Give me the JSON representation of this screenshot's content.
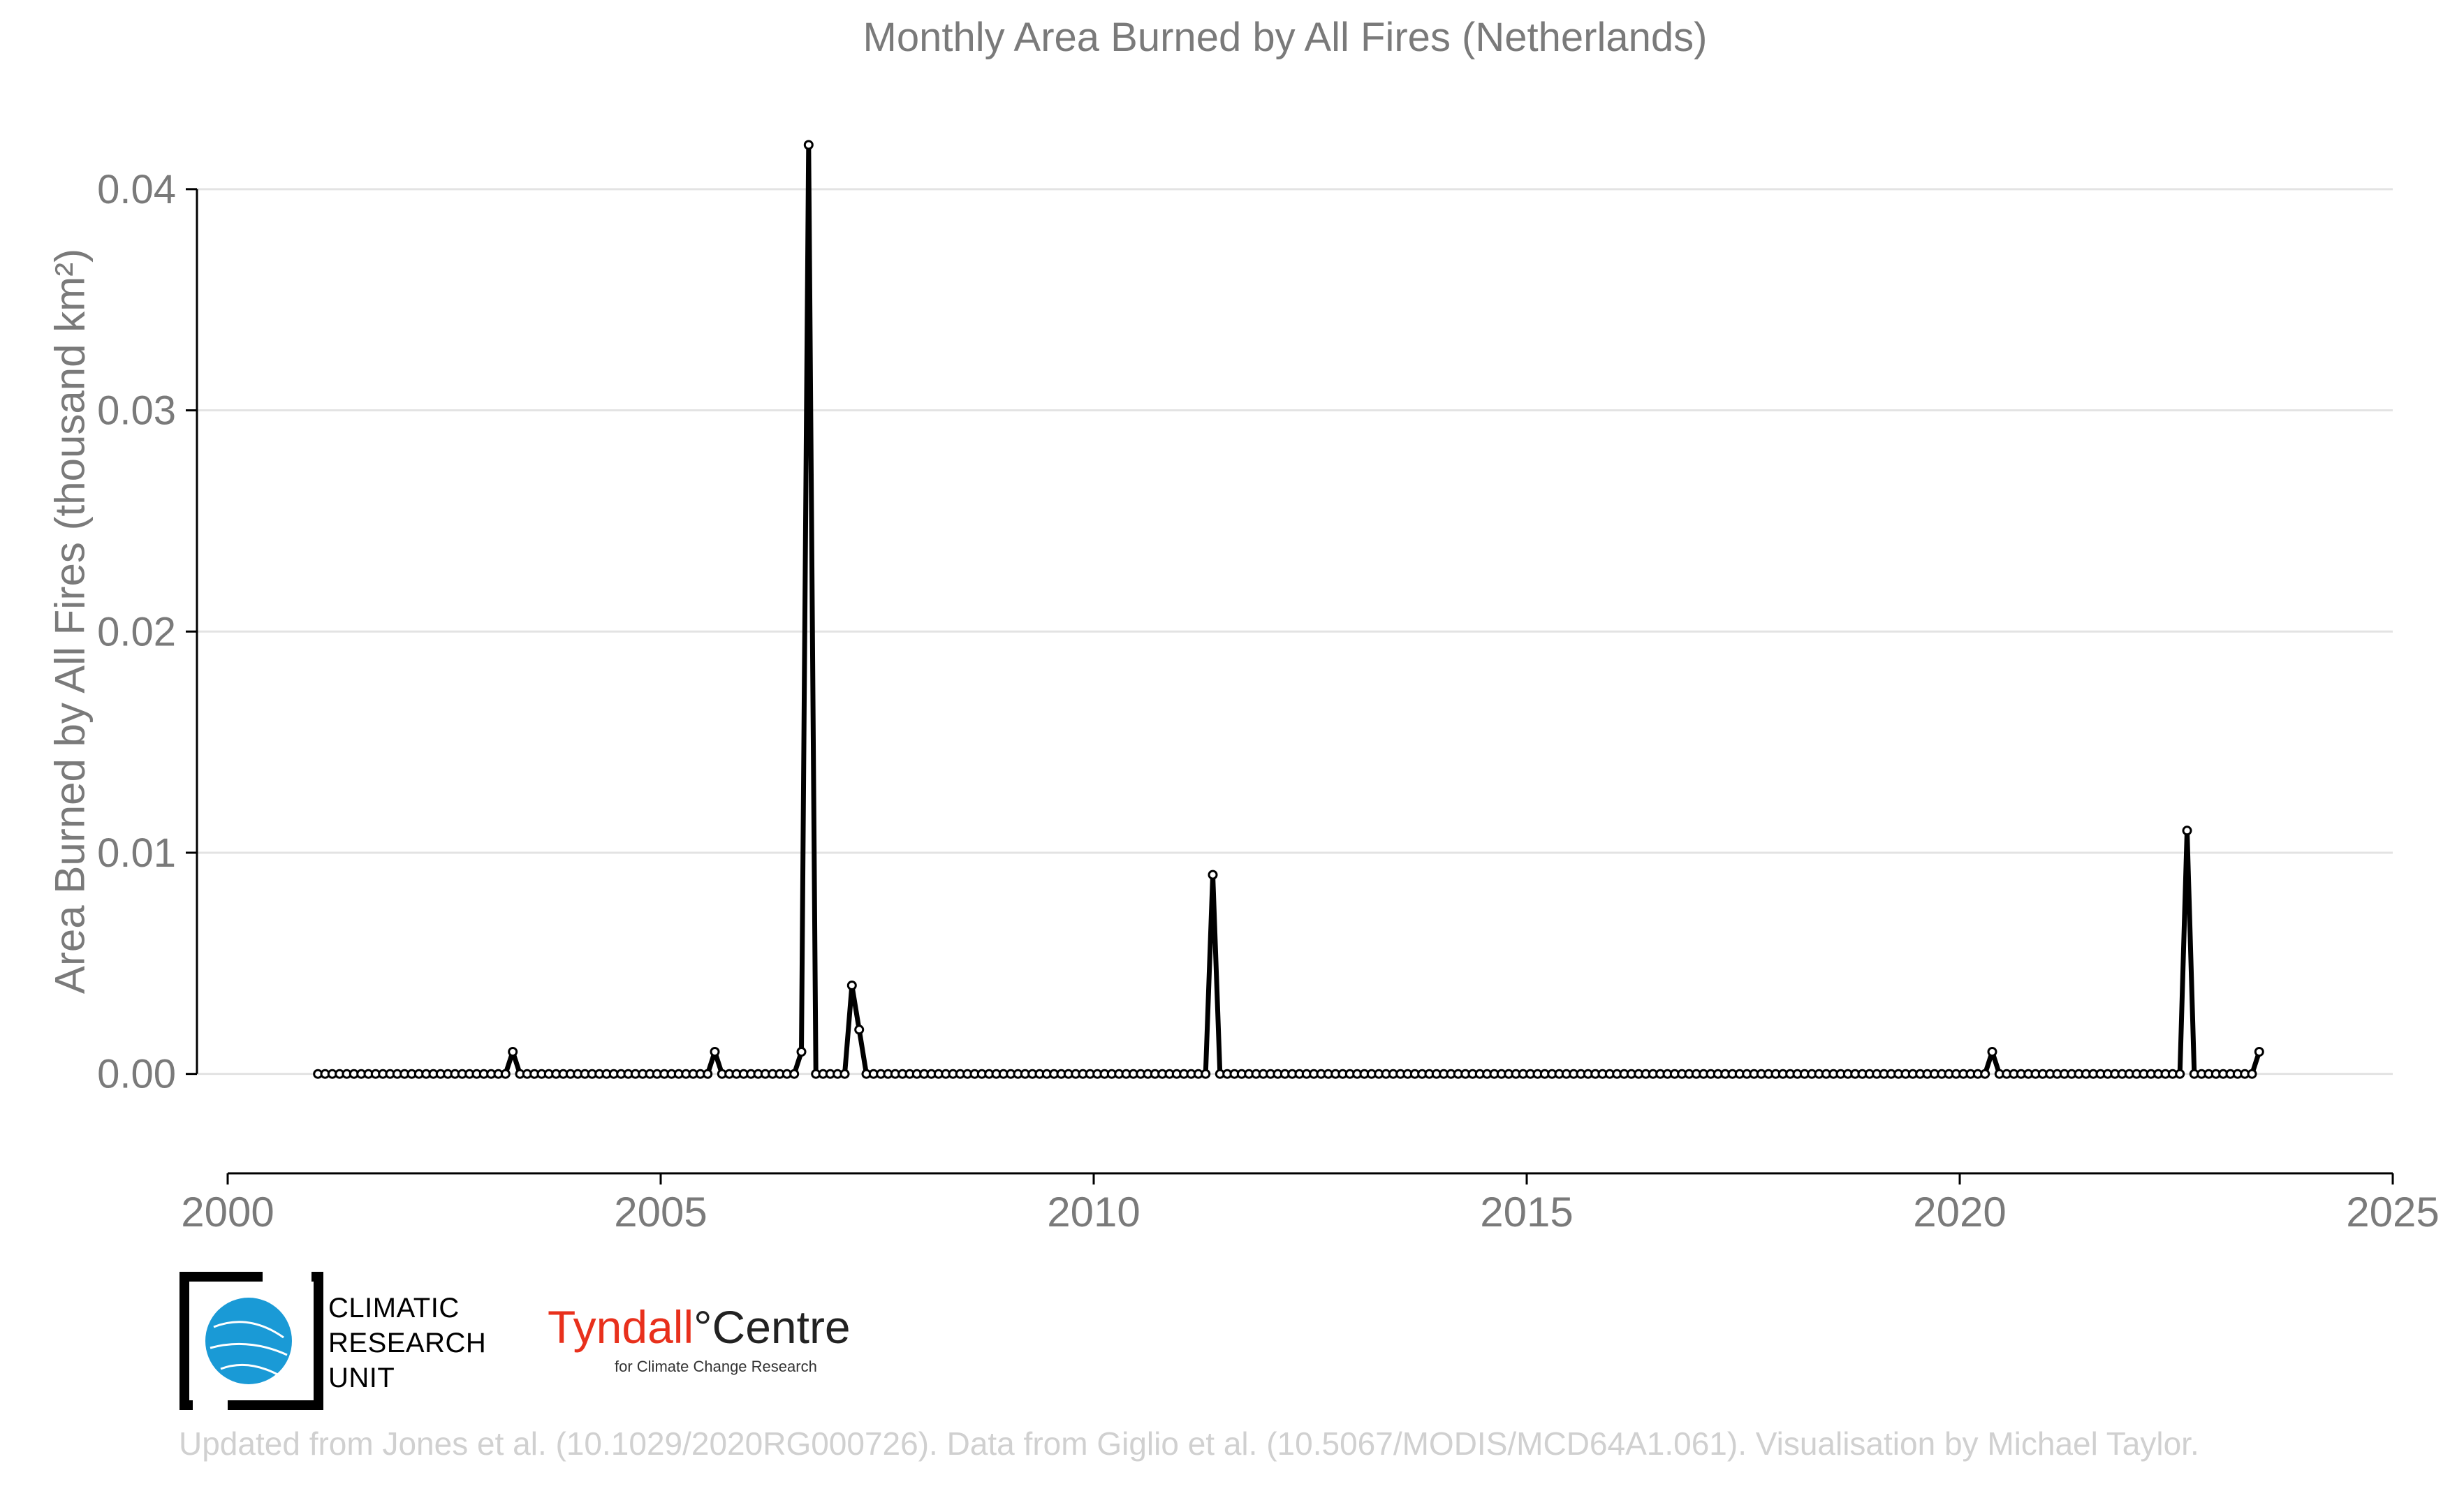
{
  "chart_data": {
    "type": "line",
    "title": "Monthly Area Burned by All Fires (Netherlands)",
    "ylabel": "Area Burned by All Fires (thousand km²)",
    "xlabel": "",
    "xlim": [
      2000,
      2025
    ],
    "ylim": [
      -0.0026,
      0.0435
    ],
    "xticks": [
      2000,
      2005,
      2010,
      2015,
      2020,
      2025
    ],
    "yticks": [
      0.0,
      0.01,
      0.02,
      0.03,
      0.04
    ],
    "ytick_labels": [
      "0.00",
      "0.01",
      "0.02",
      "0.03",
      "0.04"
    ],
    "grid": "horizontal",
    "x_start": "2001-01",
    "x_end": "2023-06",
    "series": [
      {
        "color": "#000000",
        "marker": "open-circle",
        "nonzero_points": [
          {
            "date": "2003-04",
            "value": 0.001
          },
          {
            "date": "2005-08",
            "value": 0.001
          },
          {
            "date": "2006-08",
            "value": 0.001
          },
          {
            "date": "2006-09",
            "value": 0.042
          },
          {
            "date": "2007-03",
            "value": 0.004
          },
          {
            "date": "2007-04",
            "value": 0.002
          },
          {
            "date": "2011-05",
            "value": 0.009
          },
          {
            "date": "2020-05",
            "value": 0.001
          },
          {
            "date": "2022-08",
            "value": 0.011
          },
          {
            "date": "2023-06",
            "value": 0.001
          }
        ],
        "other_months_value": 0.0
      }
    ]
  },
  "logos": {
    "cru": [
      "CLIMATIC",
      "RESEARCH",
      "UNIT"
    ],
    "tyndall_name": "Tyndall",
    "tyndall_degree": "°",
    "tyndall_centre": "Centre",
    "tyndall_sub": "for Climate Change Research"
  },
  "footer": "Updated from Jones et al. (10.1029/2020RG000726). Data from Giglio et al. (10.5067/MODIS/MCD64A1.061). Visualisation by Michael Taylor."
}
